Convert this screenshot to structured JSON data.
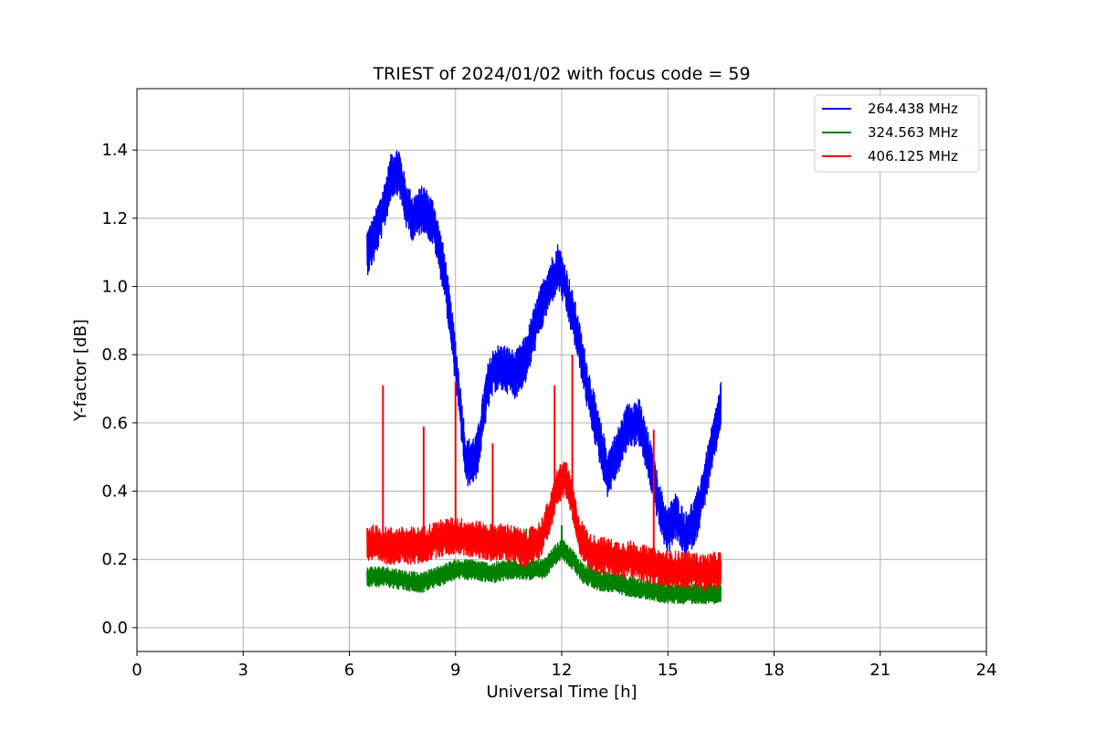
{
  "chart_data": {
    "type": "line",
    "title": "TRIEST of 2024/01/02 with focus code = 59",
    "xlabel": "Universal Time [h]",
    "ylabel": "Y-factor [dB]",
    "xlim": [
      0,
      24
    ],
    "ylim": [
      -0.07,
      1.58
    ],
    "xticks": [
      0,
      3,
      6,
      9,
      12,
      15,
      18,
      21,
      24
    ],
    "yticks": [
      0.0,
      0.2,
      0.4,
      0.6,
      0.8,
      1.0,
      1.2,
      1.4
    ],
    "ytick_labels": [
      "0.0",
      "0.2",
      "0.4",
      "0.6",
      "0.8",
      "1.0",
      "1.2",
      "1.4"
    ],
    "grid": true,
    "legend_position": "top-right",
    "series": [
      {
        "name": "264.438 MHz",
        "color": "#0000ff",
        "band": 0.14,
        "x": [
          6.5,
          6.7,
          7.0,
          7.2,
          7.4,
          7.6,
          7.8,
          8.1,
          8.4,
          8.7,
          9.0,
          9.3,
          9.6,
          9.9,
          10.1,
          10.4,
          10.7,
          11.0,
          11.3,
          11.6,
          11.9,
          12.1,
          12.4,
          12.7,
          13.0,
          13.3,
          13.6,
          13.9,
          14.2,
          14.5,
          14.8,
          15.0,
          15.2,
          15.5,
          15.8,
          16.1,
          16.4,
          16.5
        ],
        "y": [
          1.1,
          1.14,
          1.24,
          1.33,
          1.34,
          1.24,
          1.2,
          1.23,
          1.18,
          1.03,
          0.78,
          0.48,
          0.5,
          0.7,
          0.76,
          0.76,
          0.74,
          0.79,
          0.9,
          0.99,
          1.06,
          1.0,
          0.88,
          0.72,
          0.58,
          0.45,
          0.52,
          0.6,
          0.6,
          0.48,
          0.34,
          0.28,
          0.33,
          0.27,
          0.32,
          0.45,
          0.6,
          0.66
        ]
      },
      {
        "name": "324.563 MHz",
        "color": "#008000",
        "band": 0.06,
        "x": [
          6.5,
          7.0,
          7.5,
          8.0,
          8.5,
          9.0,
          9.5,
          10.0,
          10.5,
          11.0,
          11.5,
          11.8,
          12.0,
          12.3,
          12.6,
          13.0,
          13.5,
          14.0,
          14.5,
          15.0,
          15.5,
          16.0,
          16.5
        ],
        "y": [
          0.15,
          0.15,
          0.14,
          0.13,
          0.15,
          0.17,
          0.17,
          0.16,
          0.17,
          0.17,
          0.17,
          0.21,
          0.23,
          0.2,
          0.16,
          0.14,
          0.13,
          0.12,
          0.11,
          0.1,
          0.1,
          0.1,
          0.1
        ],
        "spikes": [
          [
            11.0,
            0.29
          ],
          [
            12.0,
            0.3
          ]
        ]
      },
      {
        "name": "406.125 MHz",
        "color": "#ff0000",
        "band": 0.11,
        "x": [
          6.5,
          7.0,
          7.5,
          8.0,
          8.5,
          9.0,
          9.5,
          10.0,
          10.5,
          11.0,
          11.4,
          11.7,
          11.9,
          12.1,
          12.3,
          12.5,
          12.8,
          13.2,
          13.6,
          14.0,
          14.5,
          15.0,
          15.5,
          16.0,
          16.5
        ],
        "y": [
          0.25,
          0.24,
          0.24,
          0.24,
          0.26,
          0.27,
          0.26,
          0.25,
          0.25,
          0.23,
          0.26,
          0.34,
          0.42,
          0.44,
          0.37,
          0.27,
          0.22,
          0.21,
          0.2,
          0.2,
          0.18,
          0.17,
          0.17,
          0.16,
          0.17
        ],
        "spikes": [
          [
            6.95,
            0.71
          ],
          [
            8.1,
            0.59
          ],
          [
            9.0,
            0.72
          ],
          [
            10.05,
            0.54
          ],
          [
            11.8,
            0.71
          ],
          [
            12.3,
            0.8
          ],
          [
            14.6,
            0.58
          ]
        ]
      }
    ]
  }
}
